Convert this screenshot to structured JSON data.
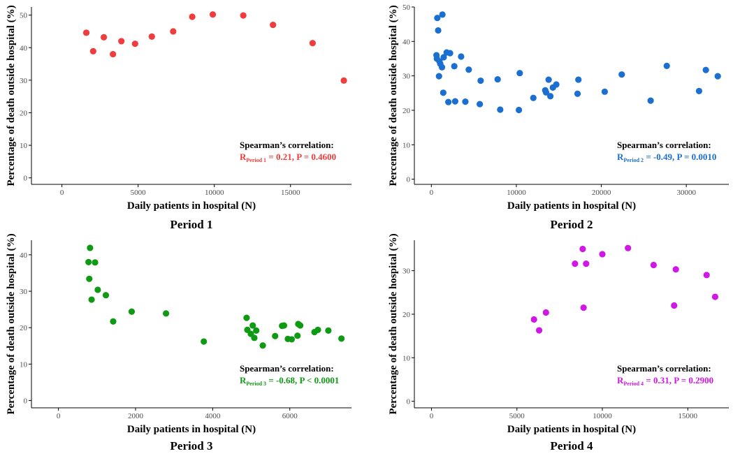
{
  "colors": {
    "period1": "#f03c3c",
    "period2": "#1a6fd0",
    "period3": "#0f9a14",
    "period4": "#d117e5",
    "axis": "#000000",
    "tick_label": "#4d4d4d"
  },
  "chart_data": [
    {
      "type": "scatter",
      "title": "Period 1",
      "xlabel": "Daily patients in hospital (N)",
      "ylabel": "Percentage of death outside hospital (%)",
      "xlim": [
        -2000,
        19000
      ],
      "ylim": [
        -2,
        52.5
      ],
      "xticks": [
        0,
        5000,
        10000,
        15000
      ],
      "yticks": [
        0,
        10,
        20,
        30,
        40,
        50
      ],
      "color": "#f03c3c",
      "annotation": {
        "heading": "Spearman’s correlation:",
        "r_prefix": "R",
        "r_subscript": "Period 1",
        "stat_text": " = 0.21, P = 0.4600"
      },
      "points": [
        {
          "x": 1600,
          "y": 44.6
        },
        {
          "x": 2050,
          "y": 38.9
        },
        {
          "x": 2750,
          "y": 43.2
        },
        {
          "x": 3350,
          "y": 38.0
        },
        {
          "x": 3900,
          "y": 42.0
        },
        {
          "x": 4800,
          "y": 41.2
        },
        {
          "x": 5900,
          "y": 43.4
        },
        {
          "x": 7300,
          "y": 45.0
        },
        {
          "x": 8550,
          "y": 49.5
        },
        {
          "x": 9900,
          "y": 50.2
        },
        {
          "x": 11900,
          "y": 49.9
        },
        {
          "x": 13850,
          "y": 47.0
        },
        {
          "x": 16450,
          "y": 41.4
        },
        {
          "x": 18500,
          "y": 29.9
        }
      ]
    },
    {
      "type": "scatter",
      "title": "Period 2",
      "xlabel": "Daily patients in hospital (N)",
      "ylabel": "Percentage of death outside hospital (%)",
      "xlim": [
        -2000,
        35000
      ],
      "ylim": [
        -1.5,
        50
      ],
      "xticks": [
        0,
        10000,
        20000,
        30000
      ],
      "yticks": [
        0,
        10,
        20,
        30,
        40,
        50
      ],
      "color": "#1a6fd0",
      "annotation": {
        "heading": "Spearman’s correlation:",
        "r_prefix": "R",
        "r_subscript": "Period 2",
        "stat_text": " = -0.49, P = 0.0010"
      },
      "points": [
        {
          "x": 700,
          "y": 46.8
        },
        {
          "x": 1300,
          "y": 47.8
        },
        {
          "x": 800,
          "y": 43.2
        },
        {
          "x": 600,
          "y": 36.0
        },
        {
          "x": 650,
          "y": 35.0
        },
        {
          "x": 950,
          "y": 34.2
        },
        {
          "x": 1050,
          "y": 33.5
        },
        {
          "x": 1250,
          "y": 32.5
        },
        {
          "x": 1450,
          "y": 35.4
        },
        {
          "x": 1800,
          "y": 36.8
        },
        {
          "x": 2200,
          "y": 36.6
        },
        {
          "x": 900,
          "y": 29.9
        },
        {
          "x": 2700,
          "y": 32.8
        },
        {
          "x": 3500,
          "y": 35.6
        },
        {
          "x": 4400,
          "y": 31.8
        },
        {
          "x": 1400,
          "y": 25.1
        },
        {
          "x": 2000,
          "y": 22.4
        },
        {
          "x": 2800,
          "y": 22.6
        },
        {
          "x": 4000,
          "y": 22.5
        },
        {
          "x": 5800,
          "y": 28.6
        },
        {
          "x": 5700,
          "y": 21.8
        },
        {
          "x": 7800,
          "y": 29.0
        },
        {
          "x": 8100,
          "y": 20.2
        },
        {
          "x": 10400,
          "y": 30.8
        },
        {
          "x": 10300,
          "y": 20.1
        },
        {
          "x": 12000,
          "y": 23.6
        },
        {
          "x": 13400,
          "y": 25.8
        },
        {
          "x": 13500,
          "y": 25.2
        },
        {
          "x": 13800,
          "y": 28.9
        },
        {
          "x": 14000,
          "y": 24.1
        },
        {
          "x": 14300,
          "y": 26.6
        },
        {
          "x": 14700,
          "y": 27.5
        },
        {
          "x": 17300,
          "y": 28.9
        },
        {
          "x": 17200,
          "y": 24.8
        },
        {
          "x": 20400,
          "y": 25.4
        },
        {
          "x": 22400,
          "y": 30.4
        },
        {
          "x": 25800,
          "y": 22.8
        },
        {
          "x": 27700,
          "y": 32.9
        },
        {
          "x": 31500,
          "y": 25.6
        },
        {
          "x": 32300,
          "y": 31.7
        },
        {
          "x": 33700,
          "y": 29.9
        }
      ]
    },
    {
      "type": "scatter",
      "title": "Period 3",
      "xlabel": "Daily patients in hospital (N)",
      "ylabel": "Percentage of death outside hospital (%)",
      "xlim": [
        -700,
        7600
      ],
      "ylim": [
        -2,
        44
      ],
      "xticks": [
        0,
        2000,
        4000,
        6000
      ],
      "yticks": [
        0,
        10,
        20,
        30,
        40
      ],
      "color": "#0f9a14",
      "annotation": {
        "heading": "Spearman’s correlation:",
        "r_prefix": "R",
        "r_subscript": "Period 3",
        "stat_text": " = -0.68, P < 0.0001"
      },
      "points": [
        {
          "x": 820,
          "y": 41.9
        },
        {
          "x": 780,
          "y": 38.0
        },
        {
          "x": 950,
          "y": 37.9
        },
        {
          "x": 800,
          "y": 33.4
        },
        {
          "x": 1020,
          "y": 30.4
        },
        {
          "x": 860,
          "y": 27.7
        },
        {
          "x": 1230,
          "y": 28.9
        },
        {
          "x": 1420,
          "y": 21.7
        },
        {
          "x": 1900,
          "y": 24.4
        },
        {
          "x": 2790,
          "y": 23.9
        },
        {
          "x": 3770,
          "y": 16.2
        },
        {
          "x": 4880,
          "y": 22.7
        },
        {
          "x": 4900,
          "y": 19.4
        },
        {
          "x": 4990,
          "y": 18.3
        },
        {
          "x": 5040,
          "y": 20.6
        },
        {
          "x": 5080,
          "y": 17.2
        },
        {
          "x": 5130,
          "y": 19.2
        },
        {
          "x": 5300,
          "y": 15.1
        },
        {
          "x": 5620,
          "y": 17.7
        },
        {
          "x": 5800,
          "y": 20.5
        },
        {
          "x": 5850,
          "y": 20.6
        },
        {
          "x": 5950,
          "y": 16.9
        },
        {
          "x": 6050,
          "y": 16.8
        },
        {
          "x": 6200,
          "y": 17.8
        },
        {
          "x": 6220,
          "y": 21.0
        },
        {
          "x": 6270,
          "y": 20.6
        },
        {
          "x": 6640,
          "y": 18.8
        },
        {
          "x": 6730,
          "y": 19.4
        },
        {
          "x": 7000,
          "y": 19.2
        },
        {
          "x": 7340,
          "y": 17.0
        }
      ]
    },
    {
      "type": "scatter",
      "title": "Period 4",
      "xlabel": "Daily patients in hospital (N)",
      "ylabel": "Percentage of death outside hospital (%)",
      "xlim": [
        -1000,
        17400
      ],
      "ylim": [
        -1.5,
        37
      ],
      "xticks": [
        0,
        5000,
        10000,
        15000
      ],
      "yticks": [
        0,
        10,
        20,
        30
      ],
      "color": "#d117e5",
      "annotation": {
        "heading": "Spearman’s correlation:",
        "r_prefix": "R",
        "r_subscript": "Period 4",
        "stat_text": " = 0.31, P = 0.2900"
      },
      "points": [
        {
          "x": 6000,
          "y": 18.8
        },
        {
          "x": 6300,
          "y": 16.3
        },
        {
          "x": 6700,
          "y": 20.4
        },
        {
          "x": 8400,
          "y": 31.6
        },
        {
          "x": 8850,
          "y": 35.0
        },
        {
          "x": 8900,
          "y": 21.5
        },
        {
          "x": 9050,
          "y": 31.6
        },
        {
          "x": 10000,
          "y": 33.8
        },
        {
          "x": 11500,
          "y": 35.2
        },
        {
          "x": 13000,
          "y": 31.3
        },
        {
          "x": 14200,
          "y": 22.0
        },
        {
          "x": 14300,
          "y": 30.3
        },
        {
          "x": 16100,
          "y": 29.0
        },
        {
          "x": 16600,
          "y": 24.0
        }
      ]
    }
  ]
}
